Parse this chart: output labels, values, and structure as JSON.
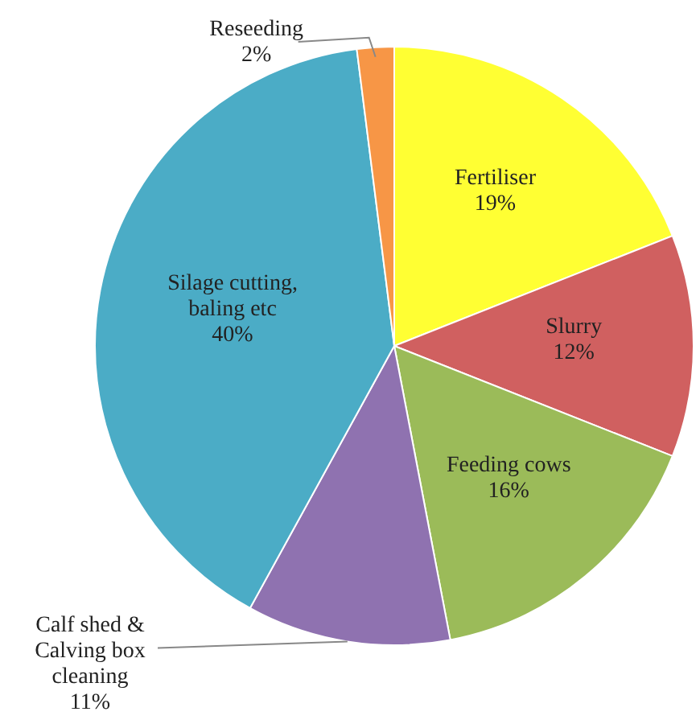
{
  "chart_data": {
    "type": "pie",
    "categories": [
      "Fertiliser",
      "Slurry",
      "Feeding cows",
      "Calf shed & Calving box cleaning",
      "Silage cutting, baling etc",
      "Reseeding"
    ],
    "values": [
      19,
      12,
      16,
      11,
      40,
      2
    ],
    "value_labels": [
      "19%",
      "12%",
      "16%",
      "11%",
      "40%",
      "2%"
    ],
    "colors": [
      "#ffff33",
      "#d06060",
      "#9bbb59",
      "#8f72b0",
      "#4bacc6",
      "#f79646"
    ]
  }
}
